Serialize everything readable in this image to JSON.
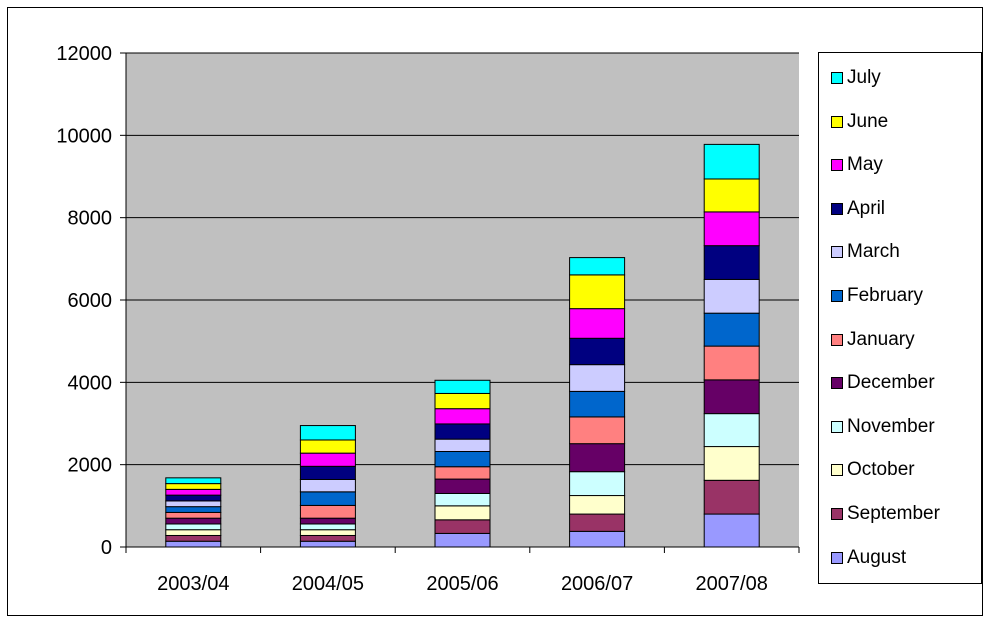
{
  "chart_data": {
    "type": "bar",
    "stacked": true,
    "categories": [
      "2003/04",
      "2004/05",
      "2005/06",
      "2006/07",
      "2007/08"
    ],
    "ylim": [
      0,
      12000
    ],
    "yticks": [
      0,
      2000,
      4000,
      6000,
      8000,
      10000,
      12000
    ],
    "ytick_labels": [
      "0",
      "2000",
      "4000",
      "6000",
      "8000",
      "10000",
      "12000"
    ],
    "grid": true,
    "plot_background": "#c0c0c0",
    "legend_position": "right",
    "series": [
      {
        "name": "August",
        "color": "#9999ff",
        "values": [
          140,
          140,
          330,
          380,
          800
        ]
      },
      {
        "name": "September",
        "color": "#993366",
        "values": [
          140,
          140,
          330,
          420,
          820
        ]
      },
      {
        "name": "October",
        "color": "#ffffcc",
        "values": [
          140,
          140,
          340,
          450,
          820
        ]
      },
      {
        "name": "November",
        "color": "#ccffff",
        "values": [
          140,
          140,
          300,
          580,
          800
        ]
      },
      {
        "name": "December",
        "color": "#660066",
        "values": [
          140,
          140,
          350,
          680,
          820
        ]
      },
      {
        "name": "January",
        "color": "#ff8080",
        "values": [
          140,
          310,
          300,
          650,
          820
        ]
      },
      {
        "name": "February",
        "color": "#0066cc",
        "values": [
          140,
          330,
          370,
          620,
          800
        ]
      },
      {
        "name": "March",
        "color": "#ccccff",
        "values": [
          140,
          300,
          300,
          650,
          820
        ]
      },
      {
        "name": "April",
        "color": "#000080",
        "values": [
          140,
          320,
          370,
          640,
          820
        ]
      },
      {
        "name": "May",
        "color": "#ff00ff",
        "values": [
          140,
          320,
          370,
          720,
          820
        ]
      },
      {
        "name": "June",
        "color": "#ffff00",
        "values": [
          140,
          320,
          370,
          820,
          800
        ]
      },
      {
        "name": "July",
        "color": "#00ffff",
        "values": [
          140,
          350,
          320,
          420,
          840
        ]
      }
    ]
  }
}
